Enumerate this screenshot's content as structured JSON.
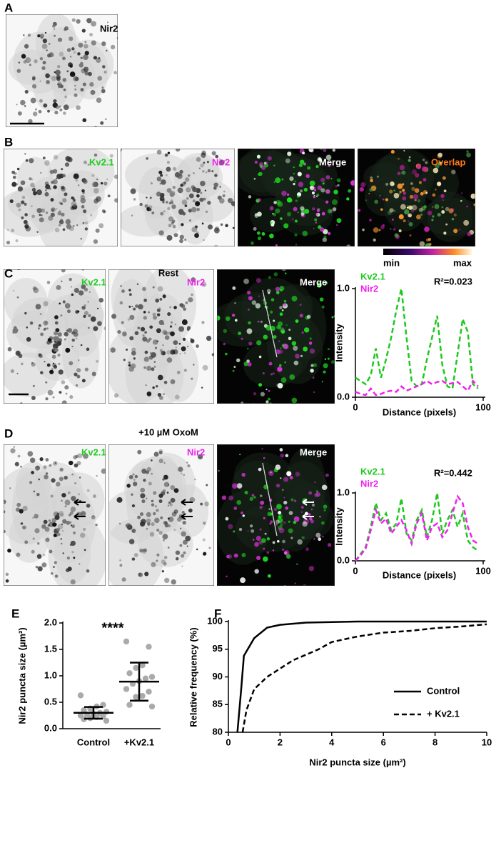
{
  "panels": {
    "a": {
      "label": "A",
      "channel": "Nir2"
    },
    "b": {
      "label": "B",
      "channels": [
        "Kv2.1",
        "Nir2",
        "Merge",
        "Overlap"
      ],
      "colorbar": [
        "min",
        "max"
      ]
    },
    "c": {
      "label": "C",
      "condition": "Rest",
      "channels": [
        "Kv2.1",
        "Nir2",
        "Merge"
      ]
    },
    "d": {
      "label": "D",
      "condition": "+10 µM OxoM",
      "channels": [
        "Kv2.1",
        "Nir2",
        "Merge"
      ]
    },
    "e": {
      "label": "E"
    },
    "f": {
      "label": "F"
    }
  },
  "chart_data": [
    {
      "type": "line",
      "annotation": "R²=0.023",
      "xlabel": "Distance (pixels)",
      "ylabel": "Intensity",
      "dashed": true,
      "x": [
        0,
        4,
        8,
        12,
        16,
        20,
        24,
        28,
        32,
        36,
        40,
        44,
        48,
        52,
        56,
        60,
        64,
        68,
        72,
        76,
        80,
        84,
        88,
        92,
        96
      ],
      "series": [
        {
          "name": "Kv2.1",
          "color": "#1ec81e",
          "values": [
            0.18,
            0.15,
            0.12,
            0.2,
            0.45,
            0.18,
            0.35,
            0.55,
            0.8,
            1.0,
            0.55,
            0.15,
            0.1,
            0.12,
            0.35,
            0.55,
            0.75,
            0.3,
            0.1,
            0.08,
            0.4,
            0.72,
            0.6,
            0.12,
            0.08
          ]
        },
        {
          "name": "Nir2",
          "color": "#ee22ee",
          "values": [
            0.05,
            0.03,
            0.02,
            0.08,
            0.02,
            0.03,
            0.05,
            0.06,
            0.05,
            0.1,
            0.06,
            0.08,
            0.1,
            0.12,
            0.15,
            0.12,
            0.14,
            0.15,
            0.12,
            0.13,
            0.14,
            0.1,
            0.06,
            0.15,
            0.1
          ]
        }
      ],
      "xlim": [
        0,
        100
      ],
      "xticks": [
        0,
        100
      ],
      "ylim": [
        0,
        1
      ],
      "yticks": [
        {
          "value": 0,
          "label": "0.0"
        },
        {
          "value": 1,
          "label": "1.0"
        }
      ],
      "legend": "upper left"
    },
    {
      "type": "line",
      "annotation": "R²=0.442",
      "xlabel": "Distance (pixels)",
      "ylabel": "Intensity",
      "dashed": true,
      "x": [
        0,
        4,
        8,
        12,
        16,
        20,
        24,
        28,
        32,
        36,
        40,
        44,
        48,
        52,
        56,
        60,
        64,
        68,
        72,
        76,
        80,
        84,
        88,
        92,
        96
      ],
      "series": [
        {
          "name": "Kv2.1",
          "color": "#1ec81e",
          "values": [
            0.0,
            0.1,
            0.2,
            0.5,
            0.85,
            0.6,
            0.7,
            0.45,
            0.55,
            0.92,
            0.4,
            0.3,
            0.6,
            0.75,
            0.35,
            0.6,
            1.0,
            0.4,
            0.6,
            0.75,
            0.5,
            0.7,
            0.3,
            0.2,
            0.15
          ]
        },
        {
          "name": "Nir2",
          "color": "#ee22ee",
          "values": [
            0.0,
            0.08,
            0.18,
            0.45,
            0.75,
            0.55,
            0.62,
            0.4,
            0.5,
            0.6,
            0.45,
            0.25,
            0.55,
            0.7,
            0.3,
            0.5,
            0.55,
            0.35,
            0.45,
            0.7,
            0.95,
            0.85,
            0.5,
            0.3,
            0.25
          ]
        }
      ],
      "xlim": [
        0,
        100
      ],
      "xticks": [
        0,
        100
      ],
      "ylim": [
        0,
        1
      ],
      "yticks": [
        {
          "value": 0,
          "label": "0.0"
        },
        {
          "value": 1,
          "label": "1.0"
        }
      ],
      "legend": "upper left"
    },
    {
      "type": "dot_error",
      "ylabel": "Nir2 puncta size (µm²)",
      "annotation": "****",
      "categories": [
        "Control",
        "+Kv2.1"
      ],
      "points": [
        [
          0.63,
          0.45,
          0.42,
          0.38,
          0.35,
          0.32,
          0.3,
          0.28,
          0.27,
          0.25,
          0.24,
          0.22,
          0.2,
          0.18,
          0.15
        ],
        [
          1.65,
          1.55,
          1.2,
          1.15,
          1.05,
          0.98,
          0.95,
          0.9,
          0.85,
          0.75,
          0.7,
          0.62,
          0.6,
          0.45,
          0.42
        ]
      ],
      "means": [
        0.3,
        0.89
      ],
      "sd": [
        0.11,
        0.36
      ],
      "color": "#aaaaaa",
      "ylim": [
        0,
        2
      ],
      "yticks": [
        {
          "value": 0,
          "label": "0.0"
        },
        {
          "value": 0.5,
          "label": "0.5"
        },
        {
          "value": 1,
          "label": "1.0"
        },
        {
          "value": 1.5,
          "label": "1.5"
        },
        {
          "value": 2,
          "label": "2.0"
        }
      ]
    },
    {
      "type": "line",
      "xlabel": "Nir2 puncta size (µm²)",
      "ylabel": "Relative frequency (%)",
      "series": [
        {
          "name": "Control",
          "color": "#000000",
          "dashed": false,
          "x": [
            0.35,
            0.5,
            0.6,
            1,
            1.5,
            2,
            3,
            5,
            10
          ],
          "values": [
            80,
            88,
            93.8,
            97,
            98.9,
            99.4,
            99.8,
            100,
            100
          ]
        },
        {
          "name": "+ Kv2.1",
          "color": "#000000",
          "dashed": true,
          "x": [
            0.55,
            0.7,
            1,
            1.5,
            2,
            2.5,
            3,
            3.5,
            4,
            5,
            6,
            7,
            8,
            9,
            10
          ],
          "values": [
            80,
            84,
            87.8,
            90,
            91.5,
            93,
            94,
            95,
            96.3,
            97.3,
            98,
            98.3,
            98.8,
            99.1,
            99.5
          ]
        }
      ],
      "xlim": [
        0,
        10
      ],
      "xticks": [
        0,
        2,
        4,
        6,
        8,
        10
      ],
      "ylim": [
        80,
        100
      ],
      "yticks": [
        80,
        85,
        90,
        95,
        100
      ],
      "legend": "lower right"
    }
  ]
}
